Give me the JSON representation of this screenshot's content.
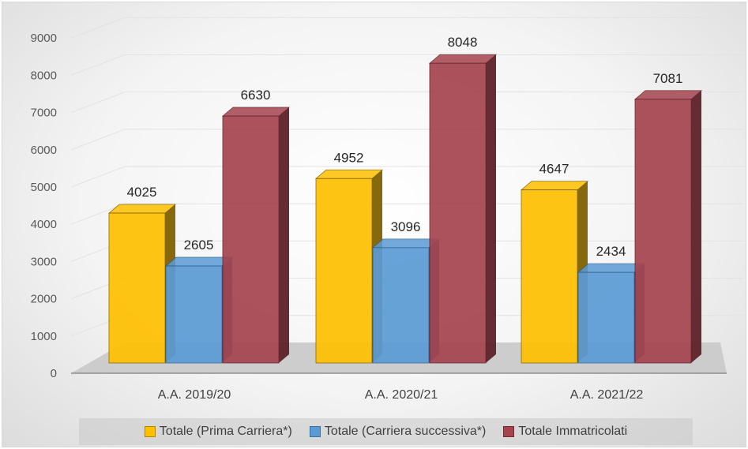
{
  "chart_data": {
    "type": "bar",
    "categories": [
      "A.A. 2019/20",
      "A.A. 2020/21",
      "A.A. 2021/22"
    ],
    "series": [
      {
        "name": "Totale (Prima Carriera*)",
        "values": [
          4025,
          4952,
          4647
        ],
        "color": "#FFC000",
        "side_color": "#7F6000"
      },
      {
        "name": "Totale (Carriera successiva*)",
        "values": [
          2605,
          3096,
          2434
        ],
        "color": "#5B9BD5",
        "side_color": "#2E5E8E"
      },
      {
        "name": "Totale Immatricolati",
        "values": [
          6630,
          8048,
          7081
        ],
        "color": "#A5444F",
        "side_color": "#5E2129"
      }
    ],
    "y_ticks": [
      "0",
      "1000",
      "2000",
      "3000",
      "4000",
      "5000",
      "6000",
      "7000",
      "8000",
      "9000"
    ],
    "ylim": [
      0,
      9000
    ],
    "grid": true,
    "legend_position": "bottom",
    "title": "",
    "xlabel": "",
    "ylabel": ""
  }
}
